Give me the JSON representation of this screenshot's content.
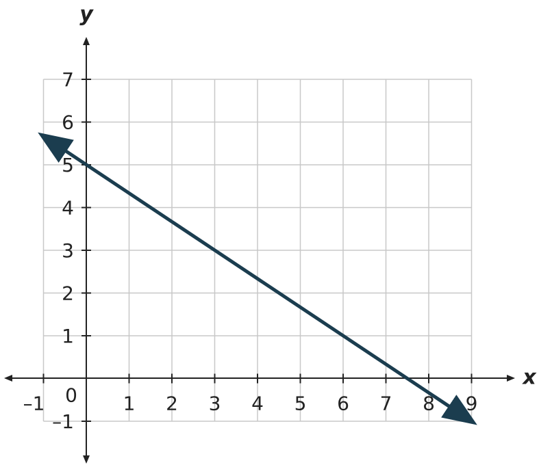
{
  "chart_data": {
    "type": "line",
    "x_label": "x",
    "y_label": "y",
    "x": [
      -1,
      9
    ],
    "series": [
      {
        "color": "#1b3d4f",
        "values": [
          5.67,
          -1
        ]
      }
    ],
    "xlim": [
      -1,
      9
    ],
    "ylim": [
      -1,
      7
    ],
    "xticks": [
      {
        "value": -1,
        "label": "–1"
      },
      0,
      1,
      2,
      3,
      4,
      5,
      6,
      7,
      8,
      9
    ],
    "yticks": [
      {
        "value": -1,
        "label": "–1"
      },
      1,
      2,
      3,
      4,
      5,
      6,
      7
    ],
    "grid": true
  }
}
